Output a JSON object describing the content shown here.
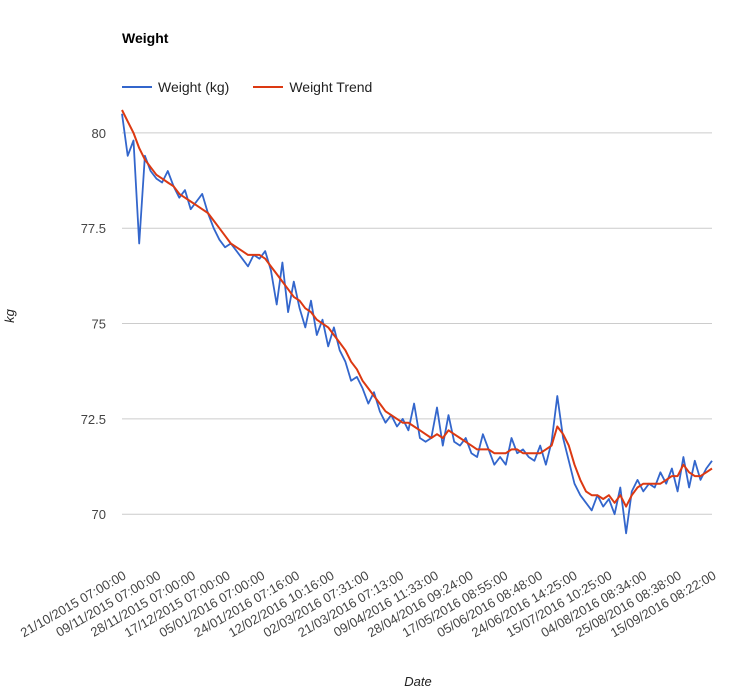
{
  "chart_data": {
    "type": "line",
    "title": "Weight",
    "xlabel": "Date",
    "ylabel": "kg",
    "ylim": [
      68.8,
      80.6
    ],
    "yticks": [
      70,
      72.5,
      75,
      77.5,
      80
    ],
    "ytick_labels": [
      "70",
      "72.5",
      "75",
      "77.5",
      "80"
    ],
    "xtick_labels": [
      "21/10/2015 07:00:00",
      "09/11/2015 07:00:00",
      "28/11/2015 07:00:00",
      "17/12/2015 07:00:00",
      "05/01/2016 07:00:00",
      "24/01/2016 07:16:00",
      "12/02/2016 10:16:00",
      "02/03/2016 07:31:00",
      "21/03/2016 07:13:00",
      "09/04/2016 11:33:00",
      "28/04/2016 09:24:00",
      "17/05/2016 08:55:00",
      "05/06/2016 08:48:00",
      "24/06/2016 14:25:00",
      "15/07/2016 10:25:00",
      "04/08/2016 08:34:00",
      "25/08/2016 08:38:00",
      "15/09/2016 08:22:00"
    ],
    "legend": "top",
    "grid": true,
    "series": [
      {
        "name": "Weight (kg)",
        "color": "#3366cc",
        "values": [
          80.5,
          79.4,
          79.8,
          77.1,
          79.4,
          79.0,
          78.8,
          78.7,
          79.0,
          78.6,
          78.3,
          78.5,
          78.0,
          78.2,
          78.4,
          77.9,
          77.5,
          77.2,
          77.0,
          77.1,
          76.9,
          76.7,
          76.5,
          76.8,
          76.7,
          76.9,
          76.4,
          75.5,
          76.6,
          75.3,
          76.1,
          75.4,
          74.9,
          75.6,
          74.7,
          75.1,
          74.4,
          74.9,
          74.3,
          74.0,
          73.5,
          73.6,
          73.3,
          72.9,
          73.2,
          72.7,
          72.4,
          72.6,
          72.3,
          72.5,
          72.2,
          72.9,
          72.0,
          71.9,
          72.0,
          72.8,
          71.8,
          72.6,
          71.9,
          71.8,
          72.0,
          71.6,
          71.5,
          72.1,
          71.7,
          71.3,
          71.5,
          71.3,
          72.0,
          71.6,
          71.7,
          71.5,
          71.4,
          71.8,
          71.3,
          71.9,
          73.1,
          72.0,
          71.4,
          70.8,
          70.5,
          70.3,
          70.1,
          70.5,
          70.2,
          70.4,
          70.0,
          70.7,
          69.5,
          70.6,
          70.9,
          70.6,
          70.8,
          70.7,
          71.1,
          70.8,
          71.2,
          70.6,
          71.5,
          70.7,
          71.4,
          70.9,
          71.2,
          71.4
        ]
      },
      {
        "name": "Weight Trend",
        "color": "#dc3912",
        "values": [
          80.6,
          80.3,
          80.0,
          79.6,
          79.3,
          79.1,
          78.9,
          78.8,
          78.7,
          78.6,
          78.4,
          78.3,
          78.2,
          78.1,
          78.0,
          77.9,
          77.7,
          77.5,
          77.3,
          77.1,
          77.0,
          76.9,
          76.8,
          76.8,
          76.8,
          76.7,
          76.5,
          76.3,
          76.1,
          75.9,
          75.7,
          75.6,
          75.4,
          75.3,
          75.1,
          75.0,
          74.9,
          74.7,
          74.5,
          74.3,
          74.0,
          73.8,
          73.5,
          73.3,
          73.1,
          72.9,
          72.7,
          72.6,
          72.5,
          72.4,
          72.4,
          72.3,
          72.2,
          72.1,
          72.0,
          72.1,
          72.0,
          72.2,
          72.1,
          72.0,
          71.9,
          71.8,
          71.7,
          71.7,
          71.7,
          71.6,
          71.6,
          71.6,
          71.7,
          71.7,
          71.6,
          71.6,
          71.6,
          71.6,
          71.7,
          71.8,
          72.3,
          72.1,
          71.8,
          71.3,
          70.9,
          70.6,
          70.5,
          70.5,
          70.4,
          70.5,
          70.3,
          70.5,
          70.2,
          70.5,
          70.7,
          70.8,
          70.8,
          70.8,
          70.8,
          70.9,
          71.0,
          71.0,
          71.3,
          71.1,
          71.0,
          71.0,
          71.1,
          71.2
        ]
      }
    ]
  }
}
